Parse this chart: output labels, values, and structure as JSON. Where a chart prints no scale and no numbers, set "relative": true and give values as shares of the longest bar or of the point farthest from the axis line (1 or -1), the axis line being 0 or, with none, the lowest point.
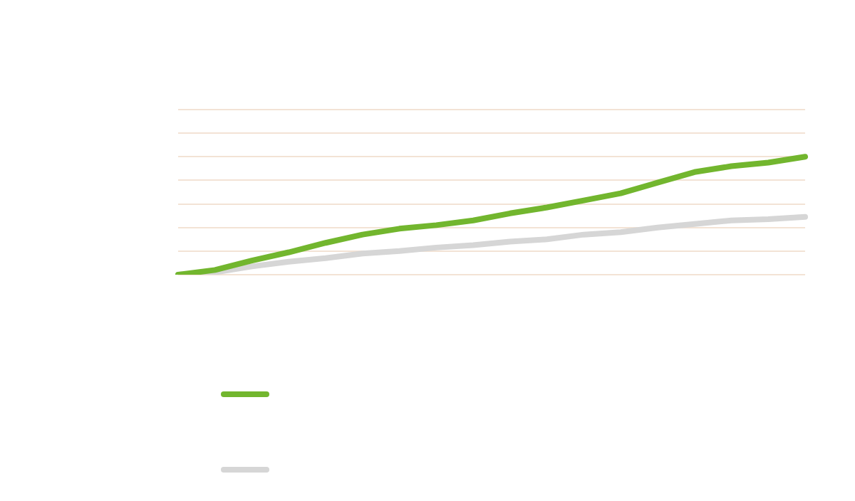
{
  "chart_data": {
    "type": "line",
    "relative": true,
    "grid": "y",
    "line_style": "solid",
    "marker": "none",
    "categories": [
      null,
      null,
      null,
      null,
      null,
      null,
      null,
      null,
      null,
      null,
      null,
      null,
      null,
      null,
      null,
      null,
      null,
      null
    ],
    "series": [
      {
        "color": "#72b62e",
        "values": [
          0,
          0.04,
          0.12,
          0.19,
          0.27,
          0.34,
          0.39,
          0.42,
          0.46,
          0.52,
          0.57,
          0.63,
          0.69,
          0.78,
          0.87,
          0.92,
          0.95,
          1
        ]
      },
      {
        "color": "#d6d6d6",
        "values": [
          0,
          0.02,
          0.07,
          0.11,
          0.14,
          0.18,
          0.2,
          0.23,
          0.25,
          0.28,
          0.3,
          0.34,
          0.36,
          0.4,
          0.43,
          0.46,
          0.47,
          0.49
        ]
      }
    ]
  }
}
